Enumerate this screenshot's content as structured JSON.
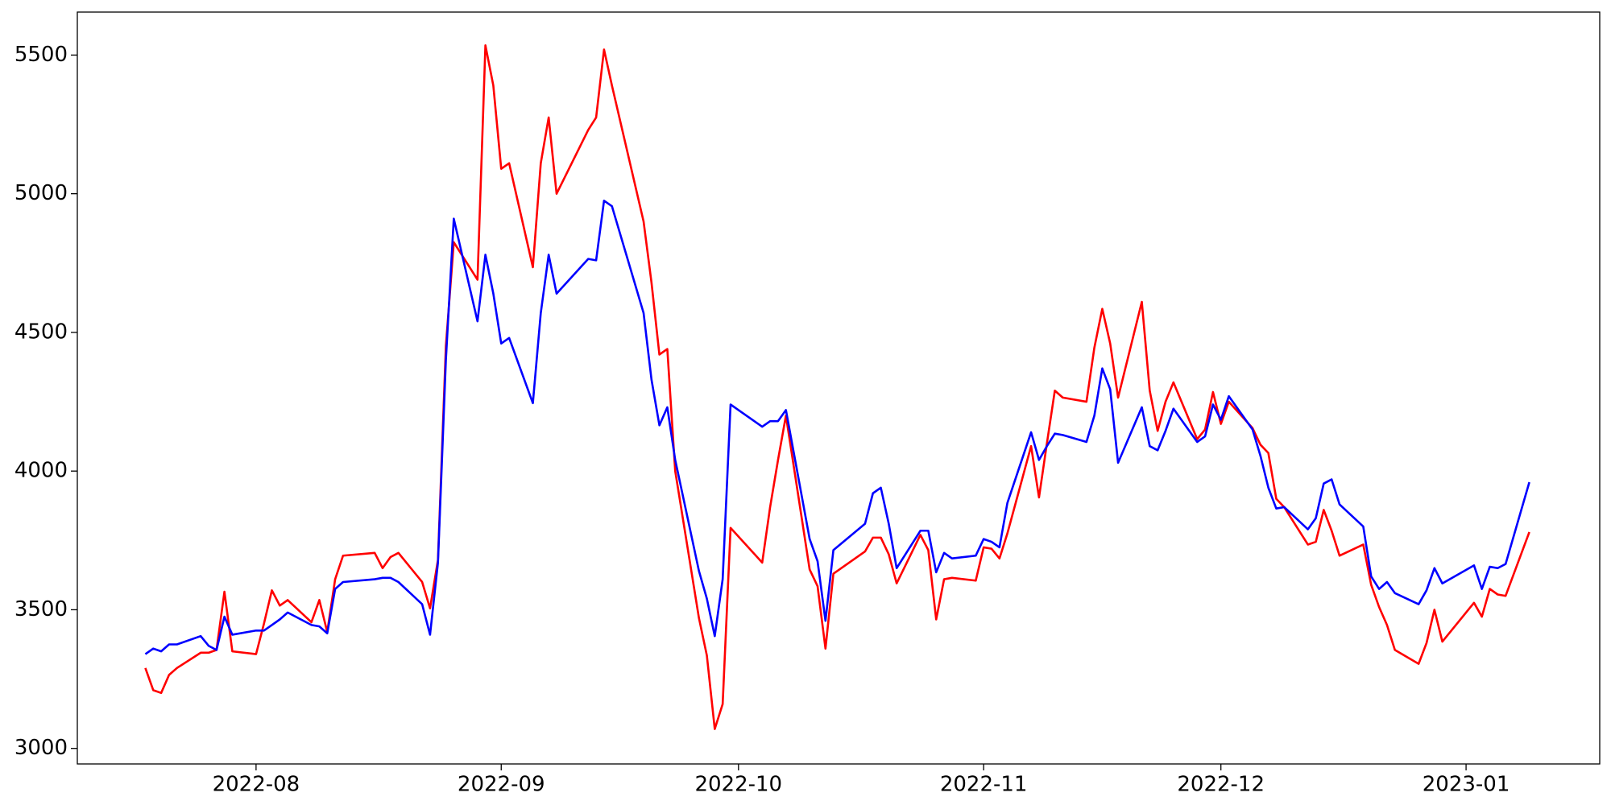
{
  "chart_data": {
    "type": "line",
    "x": [
      -14,
      -13,
      -12,
      -11,
      -10,
      -7,
      -6,
      -5,
      -4,
      -3,
      0,
      1,
      2,
      3,
      4,
      7,
      8,
      9,
      10,
      11,
      15,
      16,
      17,
      18,
      21,
      22,
      23,
      24,
      25,
      28,
      29,
      30,
      31,
      32,
      35,
      36,
      37,
      38,
      42,
      43,
      44,
      45,
      49,
      50,
      51,
      52,
      53,
      56,
      57,
      58,
      59,
      60,
      64,
      65,
      66,
      67,
      70,
      71,
      72,
      73,
      77,
      78,
      79,
      80,
      81,
      84,
      85,
      86,
      87,
      88,
      91,
      92,
      93,
      94,
      95,
      98,
      99,
      100,
      101,
      102,
      105,
      106,
      107,
      108,
      109,
      112,
      113,
      114,
      115,
      116,
      119,
      120,
      121,
      122,
      123,
      126,
      127,
      128,
      129,
      130,
      133,
      134,
      135,
      136,
      137,
      140,
      141,
      142,
      143,
      144,
      147,
      148,
      149,
      150,
      154,
      155,
      156,
      157,
      158,
      161
    ],
    "series": [
      {
        "color": "#ff0000",
        "values": [
          3290,
          3210,
          3200,
          3265,
          3290,
          3345,
          3345,
          3355,
          3565,
          3350,
          3340,
          3450,
          3570,
          3515,
          3535,
          3455,
          3535,
          3420,
          3610,
          3695,
          3705,
          3650,
          3690,
          3705,
          3600,
          3505,
          3680,
          4450,
          4825,
          4690,
          5535,
          5390,
          5090,
          5110,
          4735,
          5110,
          5275,
          5000,
          5230,
          5275,
          5520,
          5390,
          4900,
          4680,
          4420,
          4440,
          4000,
          3470,
          3335,
          3070,
          3160,
          3795,
          3670,
          3870,
          4040,
          4200,
          3645,
          3585,
          3360,
          3630,
          3710,
          3760,
          3760,
          3700,
          3595,
          3770,
          3715,
          3465,
          3610,
          3615,
          3605,
          3725,
          3720,
          3685,
          3775,
          4090,
          3905,
          4100,
          4290,
          4265,
          4250,
          4445,
          4585,
          4460,
          4265,
          4610,
          4290,
          4145,
          4250,
          4320,
          4115,
          4150,
          4285,
          4170,
          4250,
          4155,
          4095,
          4065,
          3900,
          3870,
          3735,
          3745,
          3860,
          3785,
          3695,
          3735,
          3590,
          3510,
          3445,
          3355,
          3305,
          3380,
          3500,
          3385,
          3525,
          3475,
          3575,
          3555,
          3550,
          3780
        ]
      },
      {
        "color": "#0000ff",
        "values": [
          3340,
          3360,
          3350,
          3375,
          3375,
          3405,
          3370,
          3355,
          3475,
          3410,
          3425,
          3425,
          3445,
          3465,
          3490,
          3445,
          3440,
          3415,
          3575,
          3600,
          3610,
          3615,
          3615,
          3600,
          3520,
          3410,
          3670,
          4400,
          4910,
          4540,
          4780,
          4640,
          4460,
          4480,
          4245,
          4570,
          4780,
          4640,
          4765,
          4760,
          4975,
          4955,
          4570,
          4330,
          4165,
          4230,
          4040,
          3640,
          3540,
          3405,
          3610,
          4240,
          4160,
          4180,
          4180,
          4220,
          3755,
          3675,
          3460,
          3715,
          3810,
          3920,
          3940,
          3810,
          3650,
          3785,
          3785,
          3635,
          3705,
          3685,
          3695,
          3755,
          3745,
          3725,
          3885,
          4140,
          4040,
          4090,
          4135,
          4130,
          4105,
          4200,
          4370,
          4295,
          4030,
          4230,
          4090,
          4075,
          4145,
          4225,
          4105,
          4125,
          4240,
          4185,
          4270,
          4150,
          4055,
          3940,
          3865,
          3870,
          3790,
          3830,
          3955,
          3970,
          3880,
          3800,
          3620,
          3575,
          3600,
          3560,
          3520,
          3570,
          3650,
          3595,
          3660,
          3575,
          3655,
          3650,
          3665,
          3960
        ]
      }
    ],
    "xlim": [
      -22.6,
      169.9
    ],
    "xticks": [
      {
        "value": 0,
        "label": "2022-08"
      },
      {
        "value": 31,
        "label": "2022-09"
      },
      {
        "value": 61,
        "label": "2022-10"
      },
      {
        "value": 92,
        "label": "2022-11"
      },
      {
        "value": 122,
        "label": "2022-12"
      },
      {
        "value": 153,
        "label": "2023-01"
      }
    ],
    "ylim": [
      2944,
      5655
    ],
    "yticks": [
      3000,
      3500,
      4000,
      4500,
      5000,
      5500
    ],
    "grid": false
  }
}
